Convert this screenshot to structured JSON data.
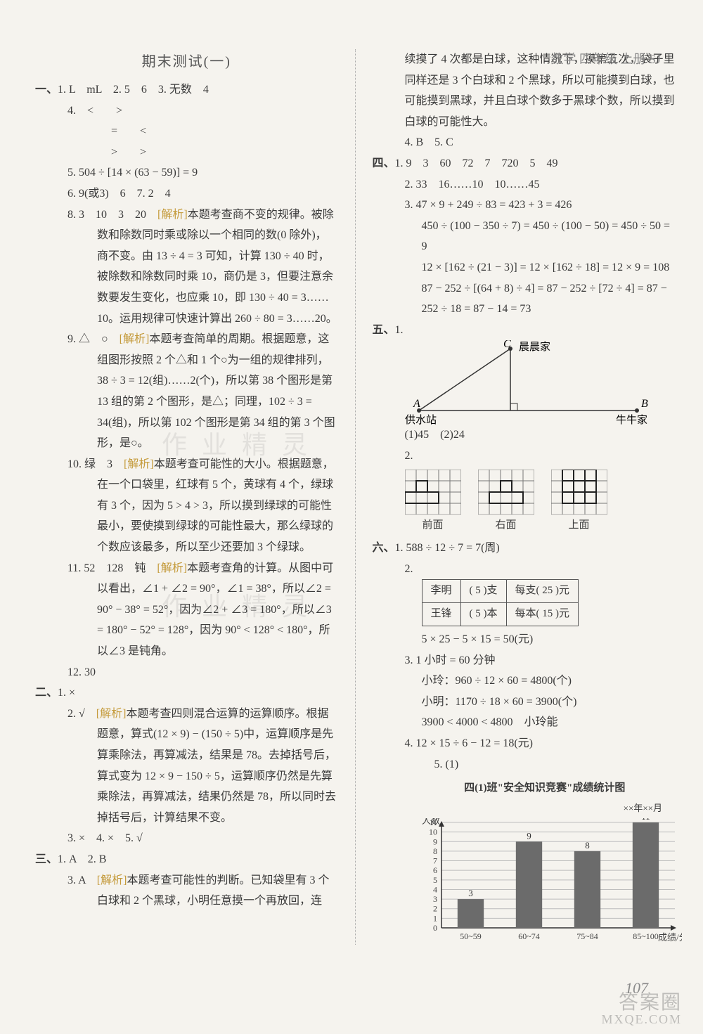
{
  "header": "数学 四年级 上册 SJ",
  "title": "期末测试(一)",
  "left": {
    "s1": {
      "label": "一、",
      "i1": "1. L　mL　2. 5　6　3. 无数　4",
      "i4a": "4.　<　　>",
      "i4b": "=　　<",
      "i4c": ">　　>",
      "i5": "5. 504 ÷ [14 × (63 − 59)] = 9",
      "i6": "6. 9(或3)　6　7. 2　4",
      "i8a": "8. 3　10　3　20　",
      "i8ana": "[解析]",
      "i8b": "本题考查商不变的规律。被除数和除数同时乘或除以一个相同的数(0 除外)，商不变。由 13 ÷ 4 = 3 可知，计算 130 ÷ 40 时，被除数和除数同时乘 10，商仍是 3，但要注意余数要发生变化，也应乘 10，即 130 ÷ 40 = 3……10。运用规律可快速计算出 260 ÷ 80 = 3……20。",
      "i9a": "9. △　○　",
      "i9b": "本题考查简单的周期。根据题意，这组图形按照 2 个△和 1 个○为一组的规律排列，38 ÷ 3 = 12(组)……2(个)，所以第 38 个图形是第 13 组的第 2 个图形，是△；同理，102 ÷ 3 = 34(组)，所以第 102 个图形是第 34 组的第 3 个图形，是○。",
      "i10a": "10. 绿　3　",
      "i10b": "本题考查可能性的大小。根据题意，在一个口袋里，红球有 5 个，黄球有 4 个，绿球有 3 个，因为 5 > 4 > 3，所以摸到绿球的可能性最小，要使摸到绿球的可能性最大，那么绿球的个数应该最多，所以至少还要加 3 个绿球。",
      "i11a": "11. 52　128　钝　",
      "i11b": "本题考查角的计算。从图中可以看出，∠1 + ∠2 = 90°，∠1 = 38°，所以∠2 = 90° − 38° = 52°，因为∠2 + ∠3 = 180°，所以∠3 = 180° − 52° = 128°，因为 90° < 128° < 180°，所以∠3 是钝角。",
      "i12": "12. 30"
    },
    "s2": {
      "label": "二、",
      "i1": "1. ×",
      "i2a": "2. √　",
      "i2b": "本题考查四则混合运算的运算顺序。根据题意，算式(12 × 9) − (150 ÷ 5)中，运算顺序是先算乘除法，再算减法，结果是 78。去掉括号后，算式变为 12 × 9 − 150 ÷ 5，运算顺序仍然是先算乘除法，再算减法，结果仍然是 78，所以同时去掉括号后，计算结果不变。",
      "i3": "3. ×　4. ×　5. √"
    },
    "s3": {
      "label": "三、",
      "i1": "1. A　2. B",
      "i3a": "3. A　",
      "i3b": "本题考查可能性的判断。已知袋里有 3 个白球和 2 个黑球，小明任意摸一个再放回，连"
    }
  },
  "right": {
    "cont": "续摸了 4 次都是白球，这种情况下，摸第五次，袋子里同样还是 3 个白球和 2 个黑球，所以可能摸到白球，也可能摸到黑球，并且白球个数多于黑球个数，所以摸到白球的可能性大。",
    "i4": "4. B　5. C",
    "s4": {
      "label": "四、",
      "i1": "1. 9　3　60　72　7　720　5　49",
      "i2": "2. 33　16……10　10……45",
      "i3a": "3. 47 × 9 + 249 ÷ 83 = 423 + 3 = 426",
      "i3b": "450 ÷ (100 − 350 ÷ 7) = 450 ÷ (100 − 50) = 450 ÷ 50 = 9",
      "i3c": "12 × [162 ÷ (21 − 3)] = 12 × [162 ÷ 18] = 12 × 9 = 108",
      "i3d": "87 − 252 ÷ [(64 + 8) ÷ 4] = 87 − 252 ÷ [72 ÷ 4] = 87 − 252 ÷ 18 = 87 − 14 = 73"
    },
    "s5": {
      "label": "五、",
      "i1": "1.",
      "diagram": {
        "A": "A",
        "B": "B",
        "C": "C",
        "water": "供水站",
        "cow": "牛牛家",
        "chen": "晨晨家"
      },
      "i1b": "(1)45　(2)24",
      "i2": "2.",
      "views": {
        "front": "前面",
        "right": "右面",
        "top": "上面"
      }
    },
    "s6": {
      "label": "六、",
      "i1": "1. 588 ÷ 12 ÷ 7 = 7(周)",
      "i2": "2.",
      "table": {
        "r1c1": "李明",
        "r1c2": "( 5 )支",
        "r1c3": "每支( 25 )元",
        "r2c1": "王锋",
        "r2c2": "( 5 )本",
        "r2c3": "每本( 15 )元"
      },
      "i2b": "5 × 25 − 5 × 15 = 50(元)",
      "i3a": "3. 1 小时 = 60 分钟",
      "i3b": "小玲：960 ÷ 12 × 60 = 4800(个)",
      "i3c": "小明：1170 ÷ 18 × 60 = 3900(个)",
      "i3d": "3900 < 4000 < 4800　小玲能",
      "i4": "4. 12 × 15 ÷ 6 − 12 = 18(元)",
      "i5": "5. (1)",
      "chart": {
        "title": "四(1)班\"安全知识竞赛\"成绩统计图",
        "date": "××年××月",
        "ylabel": "人数",
        "xlabel": "成绩/分",
        "categories": [
          "50~59",
          "60~74",
          "75~84",
          "85~100"
        ],
        "values": [
          3,
          9,
          8,
          11
        ],
        "ymax": 11,
        "bar_color": "#6b6b6b",
        "grid_color": "#bdbdbd"
      }
    }
  },
  "ana_label": "[解析]",
  "page": "107",
  "wm1": "作 业 精 灵",
  "wm2": "作 业 精 灵",
  "footer_wm": "答案圈",
  "footer_url": "MXQE.COM"
}
